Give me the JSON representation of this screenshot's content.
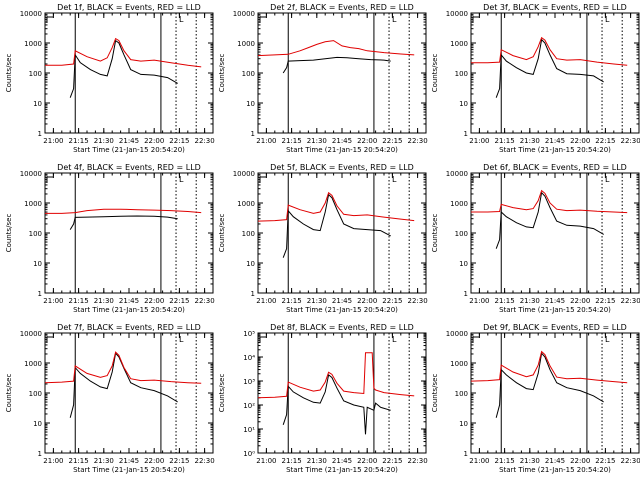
{
  "figure": {
    "background": "#ffffff",
    "axis_color": "#000000",
    "events_color": "#000000",
    "lld_color": "#e00000"
  },
  "chart_data": [
    {
      "type": "line",
      "title": "Det 1f, BLACK = Events, RED = LLD",
      "xlabel": "Start Time (21-Jan-15 20:54:20)",
      "ylabel": "Counts/sec",
      "xticks": [
        "21:00",
        "21:15",
        "21:30",
        "21:45",
        "22:00",
        "22:15",
        "22:30"
      ],
      "yticks": [
        "1",
        "10",
        "100",
        "1000",
        "10000"
      ],
      "yscale": "log",
      "ylim": [
        1,
        10000
      ],
      "markers_solid": [
        "21:13",
        "22:04"
      ],
      "markers_dotted": [
        "22:13",
        "22:25"
      ],
      "flag_label": "L",
      "series": [
        {
          "name": "Events",
          "color": "#000000",
          "x": [
            "21:10",
            "21:12",
            "21:13",
            "21:16",
            "21:22",
            "21:28",
            "21:32",
            "21:35",
            "21:37",
            "21:39",
            "21:42",
            "21:46",
            "21:52",
            "22:00",
            "22:08",
            "22:14"
          ],
          "y": [
            15,
            30,
            400,
            220,
            130,
            90,
            80,
            300,
            1200,
            1000,
            400,
            130,
            90,
            85,
            70,
            45
          ]
        },
        {
          "name": "LLD",
          "color": "#e00000",
          "x": [
            "20:55",
            "21:05",
            "21:12",
            "21:13",
            "21:20",
            "21:28",
            "21:32",
            "21:35",
            "21:37",
            "21:39",
            "21:42",
            "21:46",
            "21:52",
            "22:00",
            "22:10",
            "22:20",
            "22:28"
          ],
          "y": [
            180,
            180,
            200,
            550,
            350,
            250,
            320,
            700,
            1400,
            1200,
            550,
            280,
            250,
            270,
            220,
            180,
            160
          ]
        }
      ]
    },
    {
      "type": "line",
      "title": "Det 2f, BLACK = Events, RED = LLD",
      "xlabel": "Start Time (21-Jan-15 20:54:20)",
      "ylabel": "Counts/sec",
      "xticks": [
        "21:00",
        "21:15",
        "21:30",
        "21:45",
        "22:00",
        "22:15",
        "22:30"
      ],
      "yticks": [
        "1",
        "10",
        "100",
        "1000",
        "10000"
      ],
      "yscale": "log",
      "ylim": [
        1,
        10000
      ],
      "markers_solid": [
        "21:13",
        "22:04"
      ],
      "markers_dotted": [
        "22:13",
        "22:25"
      ],
      "flag_label": "L",
      "series": [
        {
          "name": "Events",
          "color": "#000000",
          "x": [
            "21:10",
            "21:12",
            "21:13",
            "21:20",
            "21:28",
            "21:35",
            "21:42",
            "21:48",
            "21:55",
            "22:02",
            "22:10",
            "22:14"
          ],
          "y": [
            100,
            150,
            250,
            260,
            270,
            300,
            330,
            320,
            300,
            280,
            270,
            250
          ]
        },
        {
          "name": "LLD",
          "color": "#e00000",
          "x": [
            "20:55",
            "21:05",
            "21:13",
            "21:20",
            "21:25",
            "21:30",
            "21:35",
            "21:40",
            "21:45",
            "21:50",
            "21:55",
            "22:00",
            "22:10",
            "22:20",
            "22:28"
          ],
          "y": [
            380,
            400,
            420,
            550,
            700,
            900,
            1100,
            1200,
            800,
            700,
            650,
            550,
            480,
            430,
            400
          ]
        }
      ]
    },
    {
      "type": "line",
      "title": "Det 3f, BLACK = Events, RED = LLD",
      "xlabel": "Start Time (21-Jan-15 20:54:20)",
      "ylabel": "Counts/sec",
      "xticks": [
        "21:00",
        "21:15",
        "21:30",
        "21:45",
        "22:00",
        "22:15",
        "22:30"
      ],
      "yticks": [
        "1",
        "10",
        "100",
        "1000",
        "10000"
      ],
      "yscale": "log",
      "ylim": [
        1,
        10000
      ],
      "markers_solid": [
        "21:13",
        "22:04"
      ],
      "markers_dotted": [
        "22:13",
        "22:25"
      ],
      "flag_label": "L",
      "series": [
        {
          "name": "Events",
          "color": "#000000",
          "x": [
            "21:10",
            "21:12",
            "21:13",
            "21:16",
            "21:22",
            "21:28",
            "21:32",
            "21:35",
            "21:37",
            "21:39",
            "21:42",
            "21:46",
            "21:52",
            "22:00",
            "22:08",
            "22:14"
          ],
          "y": [
            15,
            30,
            400,
            250,
            150,
            100,
            90,
            300,
            1300,
            1000,
            400,
            140,
            95,
            90,
            80,
            50
          ]
        },
        {
          "name": "LLD",
          "color": "#e00000",
          "x": [
            "20:55",
            "21:05",
            "21:12",
            "21:13",
            "21:20",
            "21:28",
            "21:32",
            "21:35",
            "21:37",
            "21:39",
            "21:42",
            "21:46",
            "21:52",
            "22:00",
            "22:10",
            "22:20",
            "22:28"
          ],
          "y": [
            220,
            220,
            230,
            600,
            380,
            280,
            350,
            750,
            1500,
            1250,
            600,
            300,
            270,
            280,
            230,
            200,
            180
          ]
        }
      ]
    },
    {
      "type": "line",
      "title": "Det 4f, BLACK = Events, RED = LLD",
      "xlabel": "Start Time (21-Jan-15 20:54:20)",
      "ylabel": "Counts/sec",
      "xticks": [
        "21:00",
        "21:15",
        "21:30",
        "21:45",
        "22:00",
        "22:15",
        "22:30"
      ],
      "yticks": [
        "1",
        "10",
        "100",
        "1000",
        "10000"
      ],
      "yscale": "log",
      "ylim": [
        1,
        10000
      ],
      "markers_solid": [
        "21:13",
        "22:04"
      ],
      "markers_dotted": [
        "22:13",
        "22:25"
      ],
      "flag_label": "L",
      "series": [
        {
          "name": "Events",
          "color": "#000000",
          "x": [
            "21:10",
            "21:12",
            "21:13",
            "21:20",
            "21:30",
            "21:40",
            "21:50",
            "22:00",
            "22:08",
            "22:14"
          ],
          "y": [
            130,
            200,
            330,
            340,
            350,
            360,
            370,
            360,
            340,
            300
          ]
        },
        {
          "name": "LLD",
          "color": "#e00000",
          "x": [
            "20:55",
            "21:05",
            "21:13",
            "21:20",
            "21:30",
            "21:40",
            "21:50",
            "22:00",
            "22:10",
            "22:20",
            "22:28"
          ],
          "y": [
            450,
            450,
            480,
            560,
            620,
            620,
            600,
            580,
            560,
            520,
            480
          ]
        }
      ]
    },
    {
      "type": "line",
      "title": "Det 5f, BLACK = Events, RED = LLD",
      "xlabel": "Start Time (21-Jan-15 20:54:20)",
      "ylabel": "Counts/sec",
      "xticks": [
        "21:00",
        "21:15",
        "21:30",
        "21:45",
        "22:00",
        "22:15",
        "22:30"
      ],
      "yticks": [
        "1",
        "10",
        "100",
        "1000",
        "10000"
      ],
      "yscale": "log",
      "ylim": [
        1,
        10000
      ],
      "markers_solid": [
        "21:13",
        "22:04"
      ],
      "markers_dotted": [
        "22:13",
        "22:25"
      ],
      "flag_label": "L",
      "series": [
        {
          "name": "Events",
          "color": "#000000",
          "x": [
            "21:10",
            "21:12",
            "21:13",
            "21:16",
            "21:22",
            "21:28",
            "21:32",
            "21:35",
            "21:37",
            "21:39",
            "21:42",
            "21:46",
            "21:52",
            "22:00",
            "22:08",
            "22:14"
          ],
          "y": [
            15,
            30,
            550,
            350,
            200,
            130,
            120,
            500,
            1900,
            1500,
            600,
            200,
            140,
            130,
            120,
            80
          ]
        },
        {
          "name": "LLD",
          "color": "#e00000",
          "x": [
            "20:55",
            "21:05",
            "21:12",
            "21:13",
            "21:20",
            "21:28",
            "21:32",
            "21:35",
            "21:37",
            "21:39",
            "21:42",
            "21:46",
            "21:52",
            "22:00",
            "22:10",
            "22:20",
            "22:28"
          ],
          "y": [
            250,
            260,
            280,
            850,
            600,
            450,
            500,
            1000,
            2200,
            1800,
            800,
            420,
            380,
            400,
            340,
            290,
            260
          ]
        }
      ]
    },
    {
      "type": "line",
      "title": "Det 6f, BLACK = Events, RED = LLD",
      "xlabel": "Start Time (21-Jan-15 20:54:20)",
      "ylabel": "Counts/sec",
      "xticks": [
        "21:00",
        "21:15",
        "21:30",
        "21:45",
        "22:00",
        "22:15",
        "22:30"
      ],
      "yticks": [
        "1",
        "10",
        "100",
        "1000",
        "10000"
      ],
      "yscale": "log",
      "ylim": [
        1,
        10000
      ],
      "markers_solid": [
        "21:13",
        "22:04"
      ],
      "markers_dotted": [
        "22:13",
        "22:25"
      ],
      "flag_label": "L",
      "series": [
        {
          "name": "Events",
          "color": "#000000",
          "x": [
            "21:10",
            "21:12",
            "21:13",
            "21:16",
            "21:22",
            "21:28",
            "21:32",
            "21:35",
            "21:37",
            "21:39",
            "21:42",
            "21:46",
            "21:52",
            "22:00",
            "22:08",
            "22:14"
          ],
          "y": [
            30,
            60,
            500,
            350,
            220,
            160,
            150,
            500,
            2200,
            1700,
            700,
            250,
            180,
            170,
            140,
            90
          ]
        },
        {
          "name": "LLD",
          "color": "#e00000",
          "x": [
            "20:55",
            "21:05",
            "21:12",
            "21:13",
            "21:20",
            "21:28",
            "21:32",
            "21:35",
            "21:37",
            "21:39",
            "21:42",
            "21:46",
            "21:52",
            "22:00",
            "22:10",
            "22:20",
            "22:28"
          ],
          "y": [
            500,
            500,
            520,
            900,
            700,
            600,
            650,
            1200,
            2600,
            2100,
            1000,
            620,
            560,
            580,
            530,
            500,
            480
          ]
        }
      ]
    },
    {
      "type": "line",
      "title": "Det 7f, BLACK = Events, RED = LLD",
      "xlabel": "Start Time (21-Jan-15 20:54:20)",
      "ylabel": "Counts/sec",
      "xticks": [
        "21:00",
        "21:15",
        "21:30",
        "21:45",
        "22:00",
        "22:15",
        "22:30"
      ],
      "yticks": [
        "1",
        "10",
        "100",
        "1000",
        "10000"
      ],
      "yscale": "log",
      "ylim": [
        1,
        10000
      ],
      "markers_solid": [
        "21:13",
        "22:04"
      ],
      "markers_dotted": [
        "22:13",
        "22:25"
      ],
      "flag_label": "L",
      "series": [
        {
          "name": "Events",
          "color": "#000000",
          "x": [
            "21:10",
            "21:12",
            "21:13",
            "21:16",
            "21:22",
            "21:28",
            "21:32",
            "21:35",
            "21:37",
            "21:39",
            "21:42",
            "21:46",
            "21:52",
            "22:00",
            "22:08",
            "22:14"
          ],
          "y": [
            15,
            40,
            700,
            450,
            250,
            160,
            140,
            500,
            2100,
            1600,
            650,
            220,
            150,
            120,
            80,
            50
          ]
        },
        {
          "name": "LLD",
          "color": "#e00000",
          "x": [
            "20:55",
            "21:05",
            "21:12",
            "21:13",
            "21:20",
            "21:28",
            "21:32",
            "21:35",
            "21:37",
            "21:39",
            "21:42",
            "21:46",
            "21:52",
            "22:00",
            "22:10",
            "22:20",
            "22:28"
          ],
          "y": [
            220,
            230,
            250,
            800,
            450,
            330,
            380,
            800,
            2300,
            1800,
            700,
            300,
            260,
            270,
            240,
            220,
            210
          ]
        }
      ]
    },
    {
      "type": "line",
      "title": "Det 8f, BLACK = Events, RED = LLD",
      "xlabel": "Start Time (21-Jan-15 20:54:20)",
      "ylabel": "Counts/sec",
      "xticks": [
        "21:00",
        "21:15",
        "21:30",
        "21:45",
        "22:00",
        "22:15",
        "22:30"
      ],
      "yticks": [
        "10⁰",
        "10¹",
        "10²",
        "10³",
        "10⁴",
        "10⁵"
      ],
      "yscale": "log",
      "ylim": [
        1,
        100000
      ],
      "markers_solid": [
        "21:13",
        "22:04"
      ],
      "markers_dotted": [
        "22:13",
        "22:25"
      ],
      "flag_label": "L",
      "series": [
        {
          "name": "Events",
          "color": "#000000",
          "x": [
            "21:10",
            "21:12",
            "21:13",
            "21:16",
            "21:22",
            "21:28",
            "21:32",
            "21:35",
            "21:37",
            "21:39",
            "21:42",
            "21:46",
            "21:52",
            "21:58",
            "21:59",
            "22:00",
            "22:04",
            "22:05",
            "22:08",
            "22:14"
          ],
          "y": [
            15,
            40,
            600,
            350,
            200,
            130,
            120,
            350,
            1800,
            1400,
            500,
            150,
            100,
            80,
            6,
            80,
            60,
            120,
            80,
            60
          ]
        },
        {
          "name": "LLD",
          "color": "#e00000",
          "x": [
            "20:55",
            "21:05",
            "21:12",
            "21:13",
            "21:20",
            "21:28",
            "21:32",
            "21:35",
            "21:37",
            "21:39",
            "21:42",
            "21:46",
            "21:52",
            "21:58",
            "21:59",
            "22:03",
            "22:04",
            "22:05",
            "22:10",
            "22:20",
            "22:28"
          ],
          "y": [
            200,
            210,
            230,
            900,
            550,
            380,
            420,
            900,
            2300,
            1900,
            800,
            380,
            330,
            300,
            15000,
            15000,
            500,
            420,
            330,
            270,
            240
          ]
        }
      ]
    },
    {
      "type": "line",
      "title": "Det 9f, BLACK = Events, RED = LLD",
      "xlabel": "Start Time (21-Jan-15 20:54:20)",
      "ylabel": "Counts/sec",
      "xticks": [
        "21:00",
        "21:15",
        "21:30",
        "21:45",
        "22:00",
        "22:15",
        "22:30"
      ],
      "yticks": [
        "1",
        "10",
        "100",
        "1000",
        "10000"
      ],
      "yscale": "log",
      "ylim": [
        1,
        10000
      ],
      "markers_solid": [
        "21:13",
        "22:04"
      ],
      "markers_dotted": [
        "22:13",
        "22:25"
      ],
      "flag_label": "L",
      "series": [
        {
          "name": "Events",
          "color": "#000000",
          "x": [
            "21:10",
            "21:12",
            "21:13",
            "21:16",
            "21:22",
            "21:28",
            "21:32",
            "21:35",
            "21:37",
            "21:39",
            "21:42",
            "21:46",
            "21:52",
            "22:00",
            "22:08",
            "22:14"
          ],
          "y": [
            15,
            40,
            600,
            400,
            220,
            140,
            130,
            450,
            2100,
            1600,
            600,
            220,
            150,
            120,
            80,
            50
          ]
        },
        {
          "name": "LLD",
          "color": "#e00000",
          "x": [
            "20:55",
            "21:05",
            "21:12",
            "21:13",
            "21:20",
            "21:28",
            "21:32",
            "21:35",
            "21:37",
            "21:39",
            "21:42",
            "21:46",
            "21:52",
            "22:00",
            "22:10",
            "22:20",
            "22:28"
          ],
          "y": [
            250,
            260,
            280,
            850,
            500,
            350,
            400,
            850,
            2400,
            1900,
            800,
            340,
            300,
            310,
            270,
            240,
            220
          ]
        }
      ]
    }
  ]
}
